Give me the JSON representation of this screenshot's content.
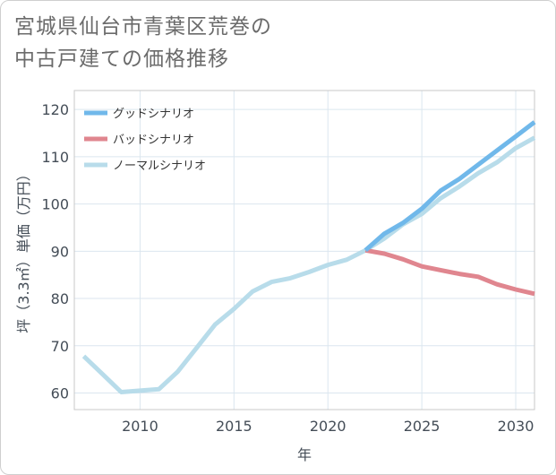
{
  "title_lines": [
    "宮城県仙台市青葉区荒巻の",
    "中古戸建ての価格推移"
  ],
  "chart_data": {
    "type": "line",
    "title": "宮城県仙台市青葉区荒巻の中古戸建ての価格推移",
    "xlabel": "年",
    "ylabel": "坪（3.3㎡）単価（万円）",
    "xlim": [
      2006.5,
      2031
    ],
    "ylim": [
      56.5,
      124
    ],
    "xticks": [
      2010,
      2015,
      2020,
      2025,
      2030
    ],
    "yticks": [
      60,
      70,
      80,
      90,
      100,
      110,
      120
    ],
    "grid": true,
    "legend_position": "top-left",
    "series": [
      {
        "name": "グッドシナリオ",
        "color": "#70b8ea",
        "x": [
          2022,
          2023,
          2024,
          2025,
          2026,
          2027,
          2028,
          2029,
          2030,
          2031
        ],
        "values": [
          90.2,
          93.7,
          96.0,
          99.0,
          102.8,
          105.3,
          108.3,
          111.3,
          114.3,
          117.3
        ]
      },
      {
        "name": "バッドシナリオ",
        "color": "#e0868f",
        "x": [
          2022,
          2023,
          2024,
          2025,
          2026,
          2027,
          2028,
          2029,
          2030,
          2031
        ],
        "values": [
          90.2,
          89.5,
          88.3,
          86.8,
          86.0,
          85.2,
          84.6,
          83.0,
          81.9,
          81.0
        ]
      },
      {
        "name": "ノーマルシナリオ",
        "color": "#b8dcea",
        "x": [
          2007,
          2008,
          2009,
          2010,
          2011,
          2012,
          2013,
          2014,
          2015,
          2016,
          2017,
          2018,
          2019,
          2020,
          2021,
          2022,
          2023,
          2024,
          2025,
          2026,
          2027,
          2028,
          2029,
          2030,
          2031
        ],
        "values": [
          67.8,
          64.0,
          60.2,
          60.5,
          60.8,
          64.5,
          69.5,
          74.5,
          77.8,
          81.5,
          83.5,
          84.3,
          85.6,
          87.1,
          88.2,
          90.2,
          92.7,
          95.7,
          97.9,
          101.2,
          103.7,
          106.5,
          108.8,
          111.8,
          114.0
        ]
      }
    ]
  }
}
